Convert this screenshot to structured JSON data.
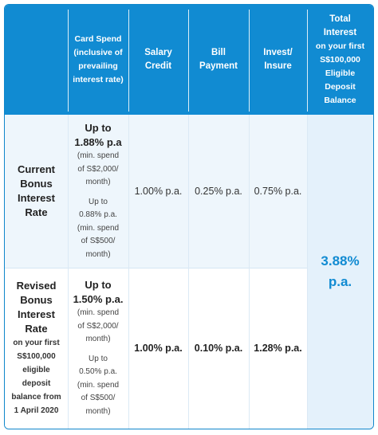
{
  "header": {
    "card_spend": [
      "Card Spend",
      "(inclusive of",
      "prevailing",
      "interest rate)"
    ],
    "salary_credit": [
      "Salary",
      "Credit"
    ],
    "bill_payment": [
      "Bill",
      "Payment"
    ],
    "invest_insure": [
      "Invest/",
      "Insure"
    ],
    "total_interest": [
      "Total",
      "Interest",
      "on your first",
      "S$100,000",
      "Eligible",
      "Deposit",
      "Balance"
    ]
  },
  "rows": [
    {
      "title": [
        "Current",
        "Bonus",
        "Interest",
        "Rate"
      ],
      "subtitle": [],
      "card_main": [
        "Up to",
        "1.88% p.a"
      ],
      "card_notes": [
        "(min. spend",
        "of S$2,000/",
        "month)",
        "",
        "Up to",
        "0.88% p.a.",
        "(min. spend",
        "of S$500/",
        "month)"
      ],
      "salary": "1.00% p.a.",
      "bill": "0.25% p.a.",
      "invest": "0.75% p.a."
    },
    {
      "title": [
        "Revised",
        "Bonus",
        "Interest",
        "Rate"
      ],
      "subtitle": [
        "on your first",
        "S$100,000",
        "eligible",
        "deposit",
        "balance from",
        "1 April 2020"
      ],
      "card_main": [
        "Up to",
        "1.50% p.a."
      ],
      "card_notes": [
        "(min. spend",
        "of S$2,000/",
        "month)",
        "",
        "Up to",
        "0.50% p.a.",
        "(min. spend",
        "of S$500/",
        "month)"
      ],
      "salary": "1.00% p.a.",
      "bill": "0.10% p.a.",
      "invest": "1.28% p.a."
    }
  ],
  "total": [
    "3.88%",
    "p.a."
  ],
  "colors": {
    "header_bg": "#118bd2",
    "accent_text": "#118bd2",
    "row_light": "#eef6fc"
  }
}
